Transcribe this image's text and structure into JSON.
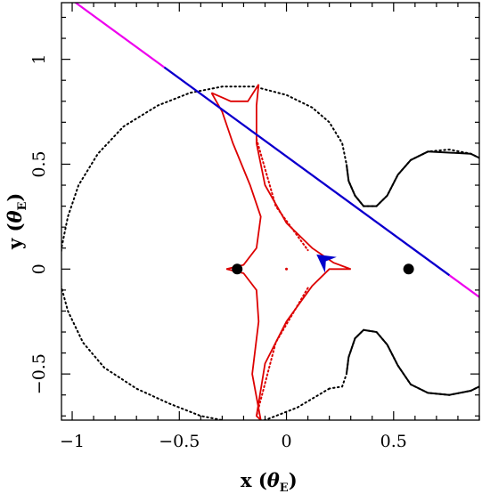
{
  "chart_data": {
    "type": "line",
    "title": "",
    "xlabel": {
      "main": "x",
      "symbol": "θ",
      "sub": "E"
    },
    "ylabel": {
      "main": "y",
      "symbol": "θ",
      "sub": "E"
    },
    "xlim": [
      -1.05,
      0.9
    ],
    "ylim": [
      -0.72,
      1.27
    ],
    "xticks": [
      {
        "value": -1,
        "label": "−1"
      },
      {
        "value": -0.5,
        "label": "−0.5"
      },
      {
        "value": 0,
        "label": "0"
      },
      {
        "value": 0.5,
        "label": "0.5"
      }
    ],
    "yticks": [
      {
        "value": -0.5,
        "label": "−0.5"
      },
      {
        "value": 0,
        "label": "0"
      },
      {
        "value": 0.5,
        "label": "0.5"
      },
      {
        "value": 1,
        "label": "1"
      }
    ],
    "grid": false,
    "colors": {
      "critical": "#000000",
      "caustic": "#dd0000",
      "trajectory": "#0000cc",
      "trajectory_outer": "#ee00ee",
      "lens": "#000000"
    },
    "lens_positions": [
      [
        -0.23,
        0.0
      ],
      [
        0.57,
        0.0
      ]
    ],
    "trajectory": {
      "slope": -0.745,
      "intercept": 0.537,
      "arrow_at": [
        0.14,
        0.07
      ],
      "inner_x": [
        -0.57,
        0.76
      ]
    },
    "critical_curve_outer": [
      [
        0.2,
        -0.57
      ],
      [
        0.05,
        -0.66
      ],
      [
        -0.1,
        -0.72
      ],
      [
        -0.25,
        -0.73
      ],
      [
        -0.4,
        -0.7
      ],
      [
        -0.55,
        -0.64
      ],
      [
        -0.7,
        -0.57
      ],
      [
        -0.85,
        -0.47
      ],
      [
        -0.95,
        -0.35
      ],
      [
        -1.02,
        -0.2
      ],
      [
        -1.06,
        -0.05
      ],
      [
        -1.05,
        0.1
      ],
      [
        -1.02,
        0.25
      ],
      [
        -0.97,
        0.4
      ],
      [
        -0.88,
        0.55
      ],
      [
        -0.76,
        0.68
      ],
      [
        -0.6,
        0.78
      ],
      [
        -0.45,
        0.84
      ],
      [
        -0.3,
        0.87
      ],
      [
        -0.15,
        0.87
      ],
      [
        0.0,
        0.83
      ],
      [
        0.12,
        0.77
      ],
      [
        0.2,
        0.7
      ],
      [
        0.26,
        0.6
      ],
      [
        0.28,
        0.5
      ],
      [
        0.29,
        0.42
      ],
      [
        0.32,
        0.35
      ],
      [
        0.36,
        0.3
      ],
      [
        0.42,
        0.3
      ],
      [
        0.47,
        0.35
      ],
      [
        0.52,
        0.45
      ],
      [
        0.58,
        0.52
      ],
      [
        0.66,
        0.56
      ],
      [
        0.76,
        0.57
      ],
      [
        0.86,
        0.55
      ],
      [
        0.92,
        0.52
      ]
    ],
    "critical_curve_lower_right": [
      [
        0.92,
        -0.55
      ],
      [
        0.86,
        -0.58
      ],
      [
        0.76,
        -0.6
      ],
      [
        0.66,
        -0.59
      ],
      [
        0.58,
        -0.55
      ],
      [
        0.52,
        -0.46
      ],
      [
        0.47,
        -0.36
      ],
      [
        0.42,
        -0.3
      ],
      [
        0.36,
        -0.29
      ],
      [
        0.32,
        -0.33
      ],
      [
        0.29,
        -0.42
      ],
      [
        0.28,
        -0.5
      ],
      [
        0.26,
        -0.56
      ],
      [
        0.2,
        -0.57
      ]
    ],
    "caustic": [
      [
        -0.35,
        0.84
      ],
      [
        -0.26,
        0.8
      ],
      [
        -0.18,
        0.8
      ],
      [
        -0.13,
        0.88
      ],
      [
        -0.14,
        0.78
      ],
      [
        -0.14,
        0.6
      ],
      [
        -0.1,
        0.4
      ],
      [
        0.0,
        0.22
      ],
      [
        0.12,
        0.1
      ],
      [
        0.22,
        0.03
      ],
      [
        0.3,
        0.0
      ],
      [
        0.2,
        0.0
      ],
      [
        0.12,
        -0.08
      ],
      [
        0.0,
        -0.25
      ],
      [
        -0.1,
        -0.45
      ],
      [
        -0.14,
        -0.7
      ],
      [
        -0.12,
        -0.72
      ],
      [
        -0.16,
        -0.5
      ],
      [
        -0.13,
        -0.25
      ],
      [
        -0.14,
        -0.1
      ],
      [
        -0.2,
        -0.02
      ],
      [
        -0.28,
        0.0
      ],
      [
        -0.2,
        0.02
      ],
      [
        -0.14,
        0.1
      ],
      [
        -0.12,
        0.25
      ],
      [
        -0.17,
        0.4
      ],
      [
        -0.25,
        0.6
      ],
      [
        -0.3,
        0.75
      ],
      [
        -0.35,
        0.84
      ]
    ]
  }
}
